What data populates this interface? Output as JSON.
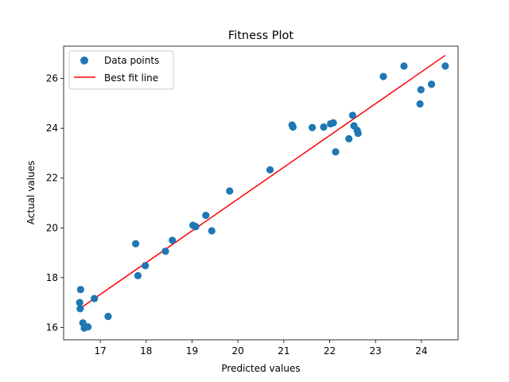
{
  "chart_data": {
    "type": "scatter",
    "title": "Fitness Plot",
    "xlabel": "Predicted values",
    "ylabel": "Actual values",
    "xlim": [
      16.2,
      24.8
    ],
    "ylim": [
      15.5,
      27.3
    ],
    "xticks": [
      17,
      18,
      19,
      20,
      21,
      22,
      23,
      24
    ],
    "yticks": [
      16,
      18,
      20,
      22,
      24,
      26
    ],
    "grid": false,
    "legend_position": "top-left",
    "colors": {
      "points": "#1f77b4",
      "line": "#ff0000"
    },
    "series": [
      {
        "name": "Data points",
        "kind": "scatter",
        "x": [
          16.57,
          16.55,
          16.56,
          16.62,
          16.65,
          16.73,
          16.87,
          17.17,
          17.77,
          17.82,
          17.98,
          18.42,
          18.57,
          19.02,
          19.08,
          19.3,
          19.43,
          19.82,
          20.7,
          21.18,
          21.2,
          21.62,
          21.87,
          22.02,
          22.08,
          22.13,
          22.42,
          22.5,
          22.53,
          22.6,
          22.62,
          23.17,
          23.62,
          23.97,
          23.99,
          24.22,
          24.52
        ],
        "y": [
          17.52,
          17.0,
          16.75,
          16.18,
          15.97,
          16.02,
          17.16,
          16.44,
          19.36,
          18.08,
          18.48,
          19.06,
          19.5,
          20.1,
          20.05,
          20.5,
          19.88,
          21.48,
          22.33,
          24.13,
          24.05,
          24.03,
          24.05,
          24.18,
          24.22,
          23.05,
          23.58,
          24.52,
          24.1,
          23.92,
          23.8,
          26.08,
          26.5,
          24.98,
          25.55,
          25.77,
          26.5
        ]
      },
      {
        "name": "Best fit line",
        "kind": "line",
        "x": [
          16.55,
          24.52
        ],
        "y": [
          16.75,
          26.93
        ]
      }
    ]
  }
}
